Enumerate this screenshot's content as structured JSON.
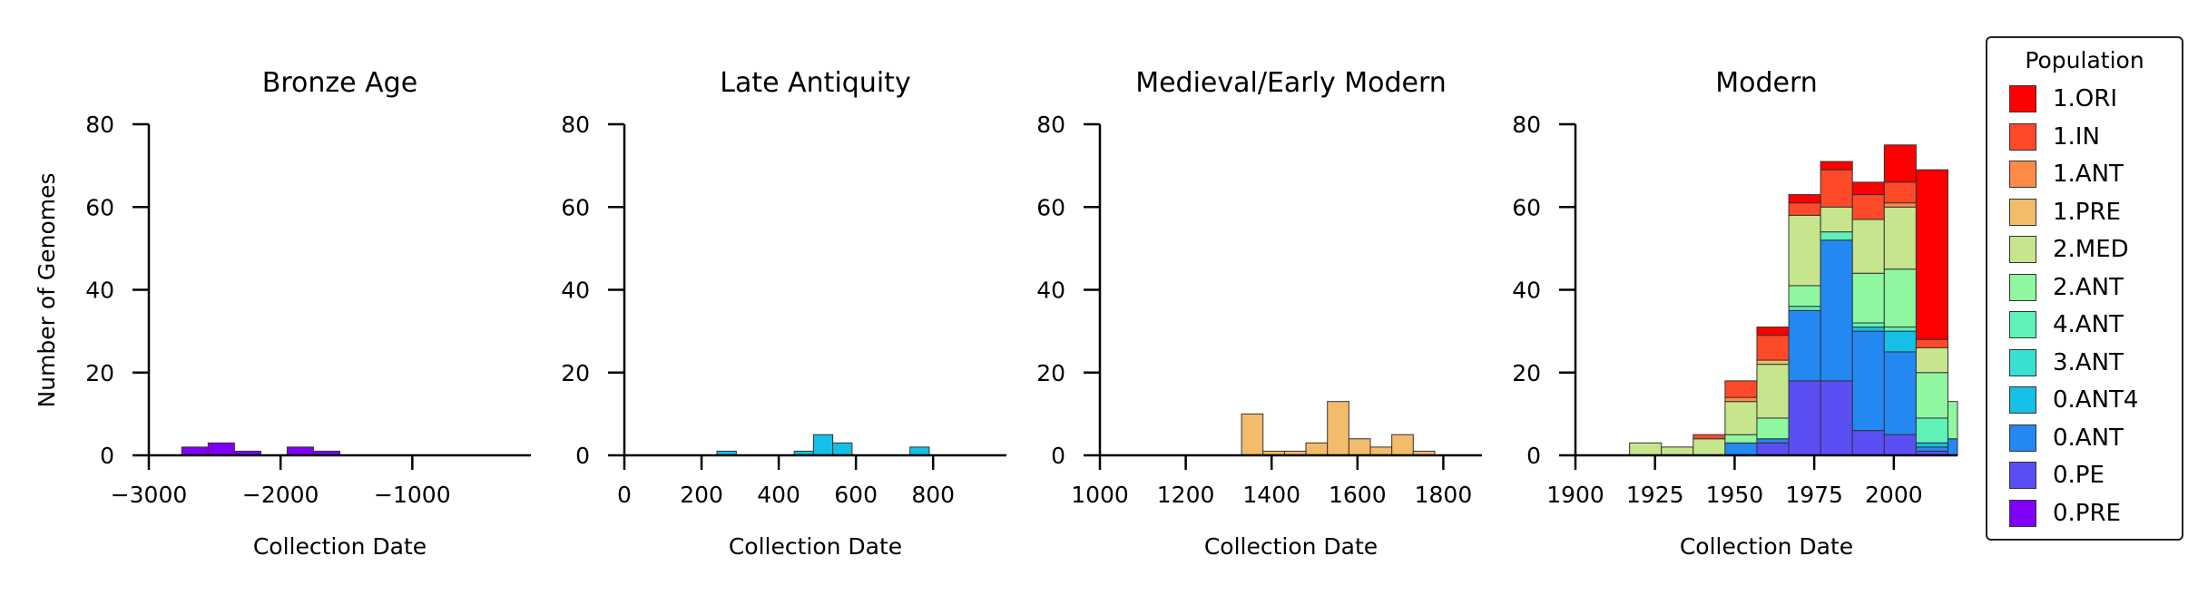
{
  "chart_data": {
    "type": "bar",
    "stacked": true,
    "shared_ylabel": "Number of Genomes",
    "colors": {
      "1.ORI": "#ff0000",
      "1.IN": "#ff4a2a",
      "1.ANT": "#ff8a48",
      "1.PRE": "#f2bc6b",
      "2.MED": "#c6e58d",
      "2.ANT": "#8ef79f",
      "4.ANT": "#5ff2b8",
      "3.ANT": "#38e0d4",
      "0.ANT4": "#14bfe8",
      "0.ANT": "#2388f2",
      "0.PE": "#5a4ff2",
      "0.PRE": "#8000f6"
    },
    "legend": {
      "title": "Population",
      "position": "right",
      "entries": [
        "1.ORI",
        "1.IN",
        "1.ANT",
        "1.PRE",
        "2.MED",
        "2.ANT",
        "4.ANT",
        "3.ANT",
        "0.ANT4",
        "0.ANT",
        "0.PE",
        "0.PRE"
      ]
    },
    "panels": [
      {
        "title": "Bronze Age",
        "xlabel": "Collection Date",
        "xlim": [
          -3000,
          -100
        ],
        "xticks": [
          -3000,
          -2000,
          -1000
        ],
        "xtick_labels": [
          "−3000",
          "−2000",
          "−1000"
        ],
        "ylim": [
          0,
          80
        ],
        "yticks": [
          0,
          20,
          40,
          60,
          80
        ],
        "bins": [
          {
            "x0": -2750,
            "x1": -2550,
            "counts": {
              "0.PRE": 2
            }
          },
          {
            "x0": -2550,
            "x1": -2350,
            "counts": {
              "0.PRE": 3
            }
          },
          {
            "x0": -2350,
            "x1": -2150,
            "counts": {
              "0.PRE": 1
            }
          },
          {
            "x0": -1950,
            "x1": -1750,
            "counts": {
              "0.PRE": 2
            }
          },
          {
            "x0": -1750,
            "x1": -1550,
            "counts": {
              "0.PRE": 1
            }
          }
        ]
      },
      {
        "title": "Late Antiquity",
        "xlabel": "Collection Date",
        "xlim": [
          0,
          990
        ],
        "xticks": [
          0,
          200,
          400,
          600,
          800
        ],
        "xtick_labels": [
          "0",
          "200",
          "400",
          "600",
          "800"
        ],
        "ylim": [
          0,
          80
        ],
        "yticks": [
          0,
          20,
          40,
          60,
          80
        ],
        "bins": [
          {
            "x0": 240,
            "x1": 290,
            "counts": {
              "0.ANT4": 1
            }
          },
          {
            "x0": 440,
            "x1": 490,
            "counts": {
              "0.ANT4": 1
            }
          },
          {
            "x0": 490,
            "x1": 540,
            "counts": {
              "0.ANT4": 5
            }
          },
          {
            "x0": 540,
            "x1": 590,
            "counts": {
              "0.ANT4": 3
            }
          },
          {
            "x0": 740,
            "x1": 790,
            "counts": {
              "0.ANT4": 2
            }
          }
        ]
      },
      {
        "title": "Medieval/Early Modern",
        "xlabel": "Collection Date",
        "xlim": [
          1000,
          1890
        ],
        "xticks": [
          1000,
          1200,
          1400,
          1600,
          1800
        ],
        "xtick_labels": [
          "1000",
          "1200",
          "1400",
          "1600",
          "1800"
        ],
        "ylim": [
          0,
          80
        ],
        "yticks": [
          0,
          20,
          40,
          60,
          80
        ],
        "bins": [
          {
            "x0": 1330,
            "x1": 1380,
            "counts": {
              "1.PRE": 10
            }
          },
          {
            "x0": 1380,
            "x1": 1430,
            "counts": {
              "1.PRE": 1
            }
          },
          {
            "x0": 1430,
            "x1": 1480,
            "counts": {
              "1.PRE": 1
            }
          },
          {
            "x0": 1480,
            "x1": 1530,
            "counts": {
              "1.PRE": 3
            }
          },
          {
            "x0": 1530,
            "x1": 1580,
            "counts": {
              "1.PRE": 13
            }
          },
          {
            "x0": 1580,
            "x1": 1630,
            "counts": {
              "1.PRE": 4
            }
          },
          {
            "x0": 1630,
            "x1": 1680,
            "counts": {
              "1.PRE": 2
            }
          },
          {
            "x0": 1680,
            "x1": 1730,
            "counts": {
              "1.PRE": 5
            }
          },
          {
            "x0": 1730,
            "x1": 1780,
            "counts": {
              "1.PRE": 1
            }
          }
        ]
      },
      {
        "title": "Modern",
        "xlabel": "Collection Date",
        "xlim": [
          1900,
          2020
        ],
        "xticks": [
          1900,
          1925,
          1950,
          1975,
          2000
        ],
        "xtick_labels": [
          "1900",
          "1925",
          "1950",
          "1975",
          "2000"
        ],
        "ylim": [
          0,
          80
        ],
        "yticks": [
          0,
          20,
          40,
          60,
          80
        ],
        "bins": [
          {
            "x0": 1917,
            "x1": 1927,
            "counts": {
              "2.MED": 3
            }
          },
          {
            "x0": 1927,
            "x1": 1937,
            "counts": {
              "2.MED": 2
            }
          },
          {
            "x0": 1937,
            "x1": 1947,
            "counts": {
              "2.MED": 4,
              "1.IN": 1
            }
          },
          {
            "x0": 1947,
            "x1": 1957,
            "counts": {
              "2.ANT": 2,
              "1.IN": 4,
              "1.ANT": 1,
              "0.ANT": 3,
              "2.MED": 8
            }
          },
          {
            "x0": 1957,
            "x1": 1967,
            "counts": {
              "2.ANT": 5,
              "1.IN": 6,
              "1.PRE": 1,
              "0.PE": 3,
              "0.ANT": 1,
              "2.MED": 13,
              "1.ORI": 2
            }
          },
          {
            "x0": 1967,
            "x1": 1977,
            "counts": {
              "4.ANT": 1,
              "2.ANT": 5,
              "1.IN": 3,
              "0.PE": 18,
              "0.ANT": 17,
              "2.MED": 17,
              "1.ORI": 2
            }
          },
          {
            "x0": 1977,
            "x1": 1987,
            "counts": {
              "1.IN": 9,
              "0.PE": 18,
              "4.ANT": 2,
              "0.ANT": 34,
              "2.MED": 6,
              "1.ORI": 2
            }
          },
          {
            "x0": 1987,
            "x1": 1997,
            "counts": {
              "0.ANT4": 1,
              "2.ANT": 12,
              "1.IN": 6,
              "0.PE": 6,
              "4.ANT": 1,
              "0.ANT": 24,
              "2.MED": 13,
              "1.ORI": 3
            }
          },
          {
            "x0": 1997,
            "x1": 2007,
            "counts": {
              "0.ANT4": 5,
              "2.ANT": 14,
              "1.IN": 5,
              "1.ANT": 1,
              "0.PE": 5,
              "4.ANT": 1,
              "0.ANT": 20,
              "2.MED": 15,
              "1.ORI": 9
            }
          },
          {
            "x0": 2007,
            "x1": 2017,
            "counts": {
              "0.ANT4": 1,
              "2.ANT": 11,
              "4.ANT": 6,
              "1.IN": 2,
              "0.PE": 1,
              "0.ANT": 1,
              "2.MED": 6,
              "1.ORI": 41
            }
          },
          {
            "x0": 2017,
            "x1": 2027,
            "counts": {
              "0.ANT": 4,
              "2.ANT": 9
            }
          }
        ]
      }
    ]
  }
}
